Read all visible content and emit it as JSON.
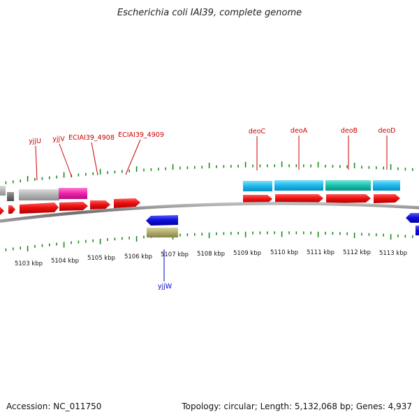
{
  "title": "Escherichia coli IAI39, complete genome",
  "footer": {
    "accession": "Accession: NC_011750",
    "summary": "Topology: circular; Length: 5,132,068 bp; Genes: 4,937"
  },
  "colors": {
    "gene_label_forward": "#cc0000",
    "gene_label_reverse": "#0000cc",
    "cds_forward": "#ee1111",
    "cds_reverse": "#1111dd",
    "tick": "#1a8a1a",
    "backbone": "#7a7a7a"
  },
  "scale": {
    "unit": "kbp",
    "labels": [
      "5103 kbp",
      "5104 kbp",
      "5105 kbp",
      "5106 kbp",
      "5107 kbp",
      "5108 kbp",
      "5109 kbp",
      "5110 kbp",
      "5111 kbp",
      "5112 kbp",
      "5113 kbp"
    ]
  },
  "genes": [
    {
      "name": "yjjU",
      "strand": "forward"
    },
    {
      "name": "yjjV",
      "strand": "forward"
    },
    {
      "name": "ECIAI39_4908",
      "strand": "forward"
    },
    {
      "name": "ECIAI39_4909",
      "strand": "forward"
    },
    {
      "name": "yjjW",
      "strand": "reverse"
    },
    {
      "name": "deoC",
      "strand": "forward"
    },
    {
      "name": "deoA",
      "strand": "forward"
    },
    {
      "name": "deoB",
      "strand": "forward"
    },
    {
      "name": "deoD",
      "strand": "forward"
    }
  ]
}
